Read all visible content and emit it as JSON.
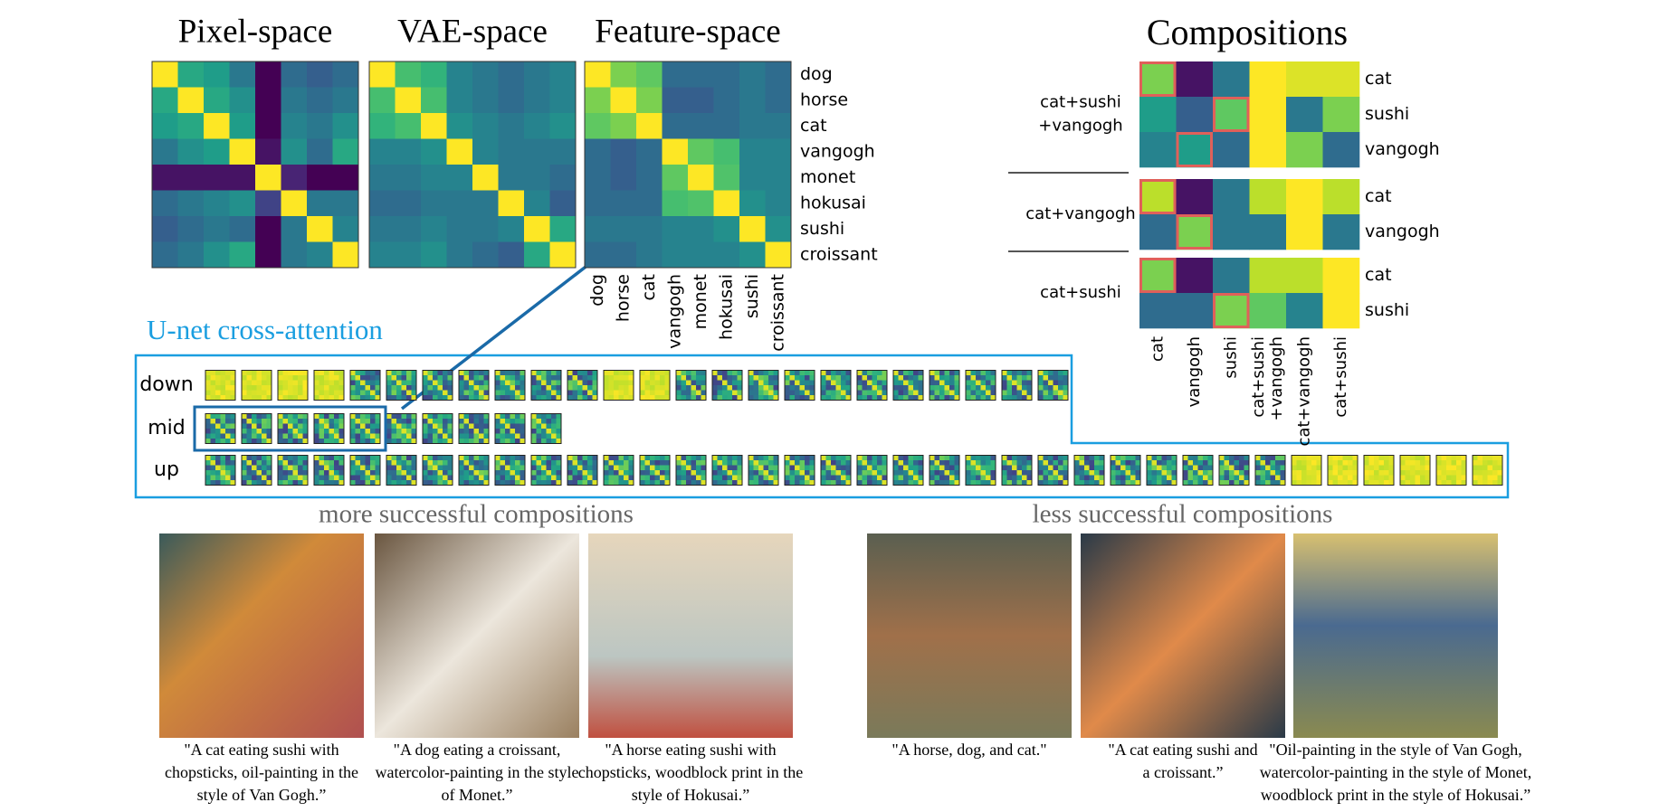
{
  "panels": [
    {
      "title": "Pixel-space",
      "matrix": [
        [
          1,
          0.6,
          0.55,
          0.4,
          0,
          0.35,
          0.3,
          0.35
        ],
        [
          0.6,
          1,
          0.6,
          0.5,
          0,
          0.4,
          0.35,
          0.4
        ],
        [
          0.55,
          0.6,
          1,
          0.55,
          0,
          0.45,
          0.4,
          0.5
        ],
        [
          0.4,
          0.5,
          0.55,
          1,
          0.05,
          0.5,
          0.35,
          0.6
        ],
        [
          0.05,
          0.05,
          0.05,
          0.05,
          1,
          0.1,
          0,
          0
        ],
        [
          0.35,
          0.4,
          0.45,
          0.5,
          0.2,
          1,
          0.4,
          0.4
        ],
        [
          0.3,
          0.35,
          0.4,
          0.35,
          0,
          0.4,
          1,
          0.45
        ],
        [
          0.35,
          0.4,
          0.5,
          0.6,
          0,
          0.4,
          0.45,
          1
        ]
      ]
    },
    {
      "title": "VAE-space",
      "matrix": [
        [
          1,
          0.7,
          0.65,
          0.45,
          0.4,
          0.35,
          0.4,
          0.45
        ],
        [
          0.7,
          1,
          0.7,
          0.45,
          0.4,
          0.35,
          0.4,
          0.45
        ],
        [
          0.65,
          0.7,
          1,
          0.5,
          0.45,
          0.4,
          0.45,
          0.5
        ],
        [
          0.45,
          0.45,
          0.5,
          1,
          0.45,
          0.4,
          0.4,
          0.4
        ],
        [
          0.4,
          0.4,
          0.45,
          0.45,
          1,
          0.4,
          0.4,
          0.35
        ],
        [
          0.35,
          0.35,
          0.4,
          0.4,
          0.4,
          1,
          0.45,
          0.3
        ],
        [
          0.4,
          0.4,
          0.45,
          0.4,
          0.4,
          0.45,
          1,
          0.6
        ],
        [
          0.45,
          0.45,
          0.5,
          0.4,
          0.35,
          0.3,
          0.6,
          1
        ]
      ]
    },
    {
      "title": "Feature-space",
      "matrix": [
        [
          1,
          0.8,
          0.75,
          0.35,
          0.35,
          0.35,
          0.4,
          0.35
        ],
        [
          0.8,
          1,
          0.8,
          0.3,
          0.3,
          0.35,
          0.4,
          0.35
        ],
        [
          0.75,
          0.8,
          1,
          0.35,
          0.35,
          0.35,
          0.4,
          0.4
        ],
        [
          0.35,
          0.3,
          0.35,
          1,
          0.75,
          0.7,
          0.45,
          0.45
        ],
        [
          0.35,
          0.3,
          0.35,
          0.75,
          1,
          0.72,
          0.45,
          0.45
        ],
        [
          0.35,
          0.35,
          0.35,
          0.7,
          0.72,
          1,
          0.5,
          0.45
        ],
        [
          0.4,
          0.4,
          0.4,
          0.45,
          0.45,
          0.5,
          1,
          0.5
        ],
        [
          0.35,
          0.35,
          0.4,
          0.45,
          0.45,
          0.45,
          0.5,
          1
        ]
      ]
    }
  ],
  "labels": [
    "dog",
    "horse",
    "cat",
    "vangogh",
    "monet",
    "hokusai",
    "sushi",
    "croissant"
  ],
  "compositions": {
    "title": "Compositions",
    "columns": [
      [
        "cat"
      ],
      [
        "vangogh"
      ],
      [
        "sushi"
      ],
      [
        "cat+sushi",
        "+vangogh"
      ],
      [
        "cat+vangogh"
      ],
      [
        "cat+sushi"
      ]
    ],
    "groups": [
      {
        "label": [
          "cat+sushi",
          "+vangogh"
        ],
        "rows": [
          "cat",
          "sushi",
          "vangogh"
        ]
      },
      {
        "label": [
          "cat+vangogh"
        ],
        "rows": [
          "cat",
          "vangogh"
        ]
      },
      {
        "label": [
          "cat+sushi"
        ],
        "rows": [
          "cat",
          "sushi"
        ]
      }
    ],
    "matrix": [
      [
        0.8,
        0.05,
        0.4,
        1,
        0.95,
        0.95
      ],
      [
        0.55,
        0.3,
        0.75,
        1,
        0.4,
        0.8
      ],
      [
        0.45,
        0.55,
        0.35,
        1,
        0.8,
        0.35
      ],
      [
        0.9,
        0.05,
        0.4,
        0.9,
        1,
        0.9
      ],
      [
        0.35,
        0.8,
        0.4,
        0.4,
        1,
        0.4
      ],
      [
        0.8,
        0.05,
        0.4,
        0.9,
        0.9,
        1
      ],
      [
        0.35,
        0.35,
        0.8,
        0.75,
        0.45,
        1
      ]
    ],
    "highlights": [
      [
        0,
        0
      ],
      [
        1,
        2
      ],
      [
        2,
        1
      ],
      [
        3,
        0
      ],
      [
        4,
        1
      ],
      [
        5,
        0
      ],
      [
        6,
        2
      ]
    ]
  },
  "unet": {
    "title": "U-net cross-attention",
    "rows": [
      {
        "name": "down",
        "count": 24
      },
      {
        "name": "mid",
        "count": 10,
        "highlighted": 5
      },
      {
        "name": "up",
        "count": 36
      }
    ]
  },
  "results": [
    {
      "heading": "more successful compositions",
      "images": [
        {
          "caption": [
            "\"A cat eating sushi with",
            "chopsticks, oil-painting in the",
            "style of Van Gogh.”"
          ]
        },
        {
          "caption": [
            "\"A dog eating a croissant,",
            "watercolor-painting in the style",
            "of Monet.”"
          ]
        },
        {
          "caption": [
            "\"A horse eating sushi with",
            "chopsticks, woodblock print in the",
            "style of Hokusai.”"
          ]
        }
      ]
    },
    {
      "heading": "less successful compositions",
      "images": [
        {
          "caption": [
            "\"A horse, dog, and cat.\""
          ]
        },
        {
          "caption": [
            "\"A cat eating sushi and",
            "a croissant.”"
          ]
        },
        {
          "caption": [
            "\"Oil-painting in the style of Van Gogh,",
            "watercolor-painting in the style of Monet,",
            "woodblock print in the style of Hokusai.”"
          ]
        }
      ]
    }
  ]
}
